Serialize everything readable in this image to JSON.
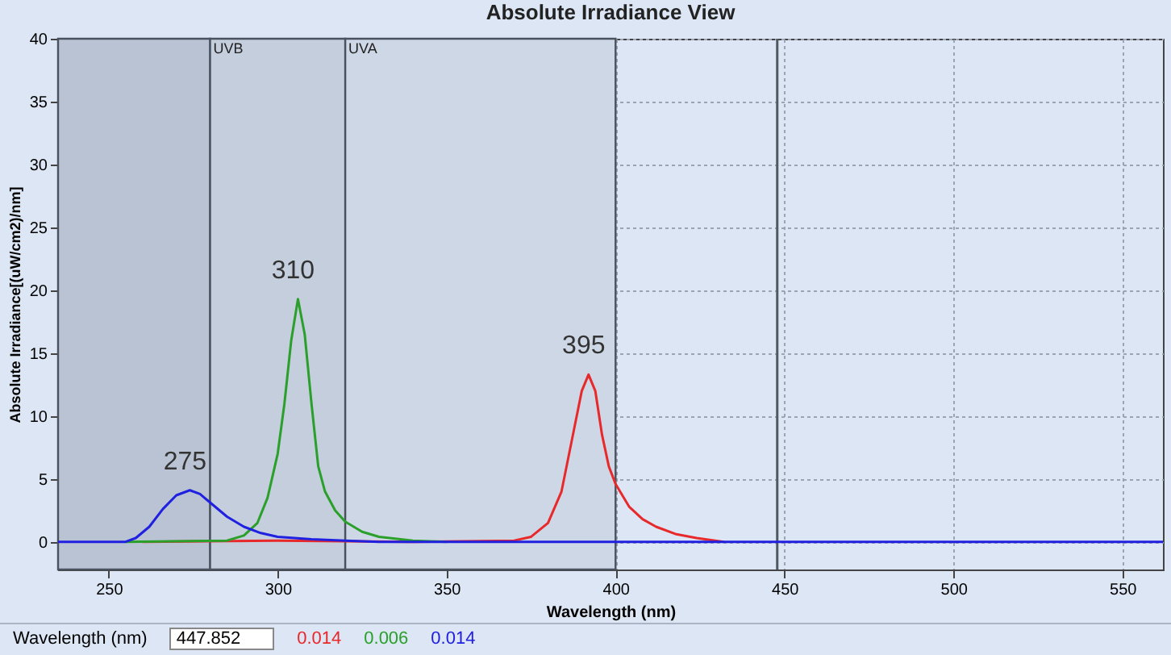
{
  "chart_data": {
    "type": "line",
    "title": "Absolute Irradiance View",
    "xlabel": "Wavelength (nm)",
    "ylabel": "Absolute Irradiance[(uW/cm2)/nm]",
    "xlim": [
      235,
      562
    ],
    "xticks": [
      250,
      300,
      350,
      400,
      450,
      500,
      550
    ],
    "ylim": [
      -2.2,
      40
    ],
    "yticks": [
      0,
      5,
      10,
      15,
      20,
      25,
      30,
      35,
      40
    ],
    "grid": true,
    "series": [
      {
        "color": "#e8292b",
        "x": [
          260,
          300,
          340,
          370,
          375,
          380,
          384,
          387,
          390,
          392,
          394,
          396,
          398,
          400,
          404,
          408,
          412,
          418,
          424,
          432
        ],
        "values": [
          0,
          0.1,
          0,
          0.1,
          0.4,
          1.5,
          4,
          8,
          12,
          13.3,
          12,
          8.5,
          6,
          4.6,
          2.8,
          1.8,
          1.2,
          0.6,
          0.3,
          0
        ]
      },
      {
        "color": "#2aa02a",
        "x": [
          255,
          285,
          290,
          294,
          297,
          300,
          302,
          304,
          306,
          308,
          310,
          312,
          314,
          317,
          320,
          325,
          330,
          340,
          350
        ],
        "values": [
          0,
          0.1,
          0.5,
          1.5,
          3.5,
          7,
          11,
          16,
          19.3,
          16.5,
          11,
          6,
          4,
          2.5,
          1.6,
          0.8,
          0.4,
          0.1,
          0
        ]
      },
      {
        "color": "#2020e0",
        "x": [
          235,
          255,
          258,
          262,
          266,
          270,
          274,
          277,
          281,
          285,
          290,
          295,
          300,
          310,
          320,
          330,
          562
        ],
        "values": [
          0,
          0,
          0.3,
          1.2,
          2.6,
          3.7,
          4.1,
          3.8,
          2.9,
          2.0,
          1.2,
          0.7,
          0.4,
          0.2,
          0.1,
          0,
          0
        ]
      }
    ],
    "bands": [
      {
        "axis": "x",
        "from": 235,
        "to": 280,
        "label": null,
        "color": "#b9c3d3"
      },
      {
        "axis": "x",
        "from": 280,
        "to": 320,
        "label": "UVB",
        "color": "#c4cedd"
      },
      {
        "axis": "x",
        "from": 320,
        "to": 400,
        "label": "UVA",
        "color": "#ced7e5"
      }
    ],
    "ref_lines": [
      {
        "axis": "x",
        "value": 447.852,
        "label": null,
        "color": "#505860"
      }
    ],
    "annotations": [
      {
        "text": "275",
        "x": 274,
        "y": 4.1
      },
      {
        "text": "310",
        "x": 306,
        "y": 19.3
      },
      {
        "text": "395",
        "x": 392,
        "y": 13.3
      },
      "Wavelength (nm)",
      "447.852",
      "0.014",
      "0.006",
      "0.014"
    ]
  }
}
